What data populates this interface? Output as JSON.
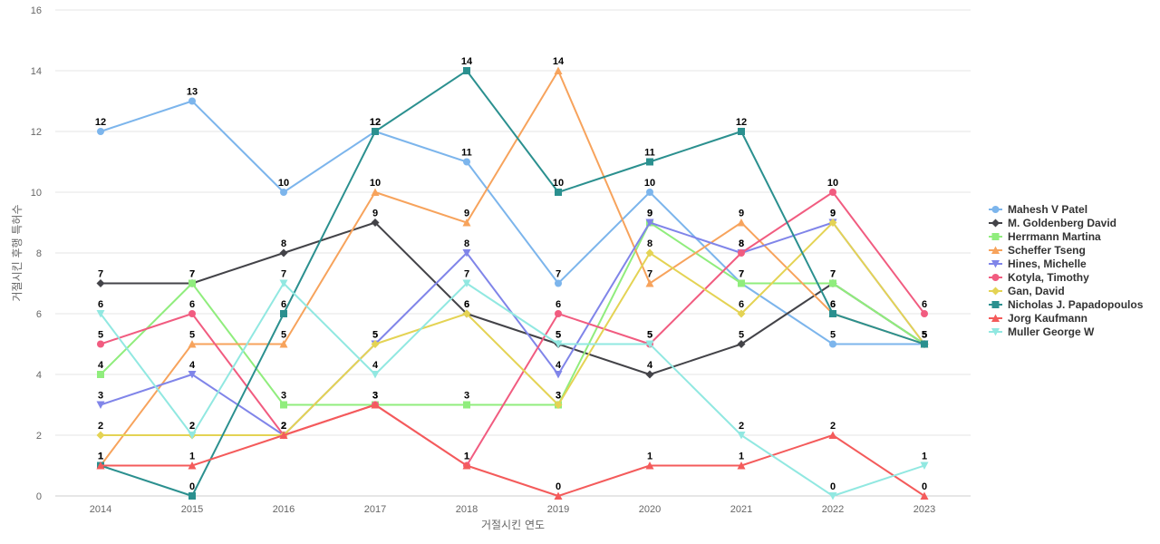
{
  "chart_data": {
    "type": "line",
    "title": "",
    "xlabel": "거절시킨 연도",
    "ylabel": "거절시킨 후행 특허수",
    "x": [
      "2014",
      "2015",
      "2016",
      "2017",
      "2018",
      "2019",
      "2020",
      "2021",
      "2022",
      "2023"
    ],
    "ylim": [
      0,
      16
    ],
    "yticks": [
      0,
      2,
      4,
      6,
      8,
      10,
      12,
      14,
      16
    ],
    "grid": true,
    "legend_position": "right",
    "series": [
      {
        "name": "Mahesh V Patel",
        "color": "#7cb5ec",
        "marker": "circle",
        "values": [
          12,
          13,
          10,
          12,
          11,
          7,
          10,
          7,
          5,
          5
        ]
      },
      {
        "name": "M. Goldenberg David",
        "color": "#434348",
        "marker": "diamond",
        "values": [
          7,
          7,
          8,
          9,
          6,
          5,
          4,
          5,
          7,
          5
        ]
      },
      {
        "name": "Herrmann Martina",
        "color": "#90ed7d",
        "marker": "square",
        "values": [
          4,
          7,
          3,
          3,
          3,
          3,
          9,
          7,
          7,
          5
        ]
      },
      {
        "name": "Scheffer Tseng",
        "color": "#f7a35c",
        "marker": "triangle",
        "values": [
          1,
          5,
          5,
          10,
          9,
          14,
          7,
          9,
          6,
          5
        ]
      },
      {
        "name": "Hines, Michelle",
        "color": "#8085e9",
        "marker": "triangle-down",
        "values": [
          3,
          4,
          2,
          5,
          8,
          4,
          9,
          8,
          9,
          5
        ]
      },
      {
        "name": "Kotyla, Timothy",
        "color": "#f15c80",
        "marker": "circle",
        "values": [
          5,
          6,
          2,
          3,
          1,
          6,
          5,
          8,
          10,
          6
        ]
      },
      {
        "name": "Gan, David",
        "color": "#e4d354",
        "marker": "diamond",
        "values": [
          2,
          2,
          2,
          5,
          6,
          3,
          8,
          6,
          9,
          5
        ]
      },
      {
        "name": "Nicholas J. Papadopoulos",
        "color": "#2b908f",
        "marker": "square",
        "values": [
          1,
          0,
          6,
          12,
          14,
          10,
          11,
          12,
          6,
          5
        ]
      },
      {
        "name": "Jorg Kaufmann",
        "color": "#f45b5b",
        "marker": "triangle",
        "values": [
          1,
          1,
          2,
          3,
          1,
          0,
          1,
          1,
          2,
          0
        ]
      },
      {
        "name": "Muller George W",
        "color": "#91e8e1",
        "marker": "triangle-down",
        "values": [
          6,
          2,
          7,
          4,
          7,
          5,
          5,
          2,
          0,
          1
        ]
      }
    ]
  }
}
